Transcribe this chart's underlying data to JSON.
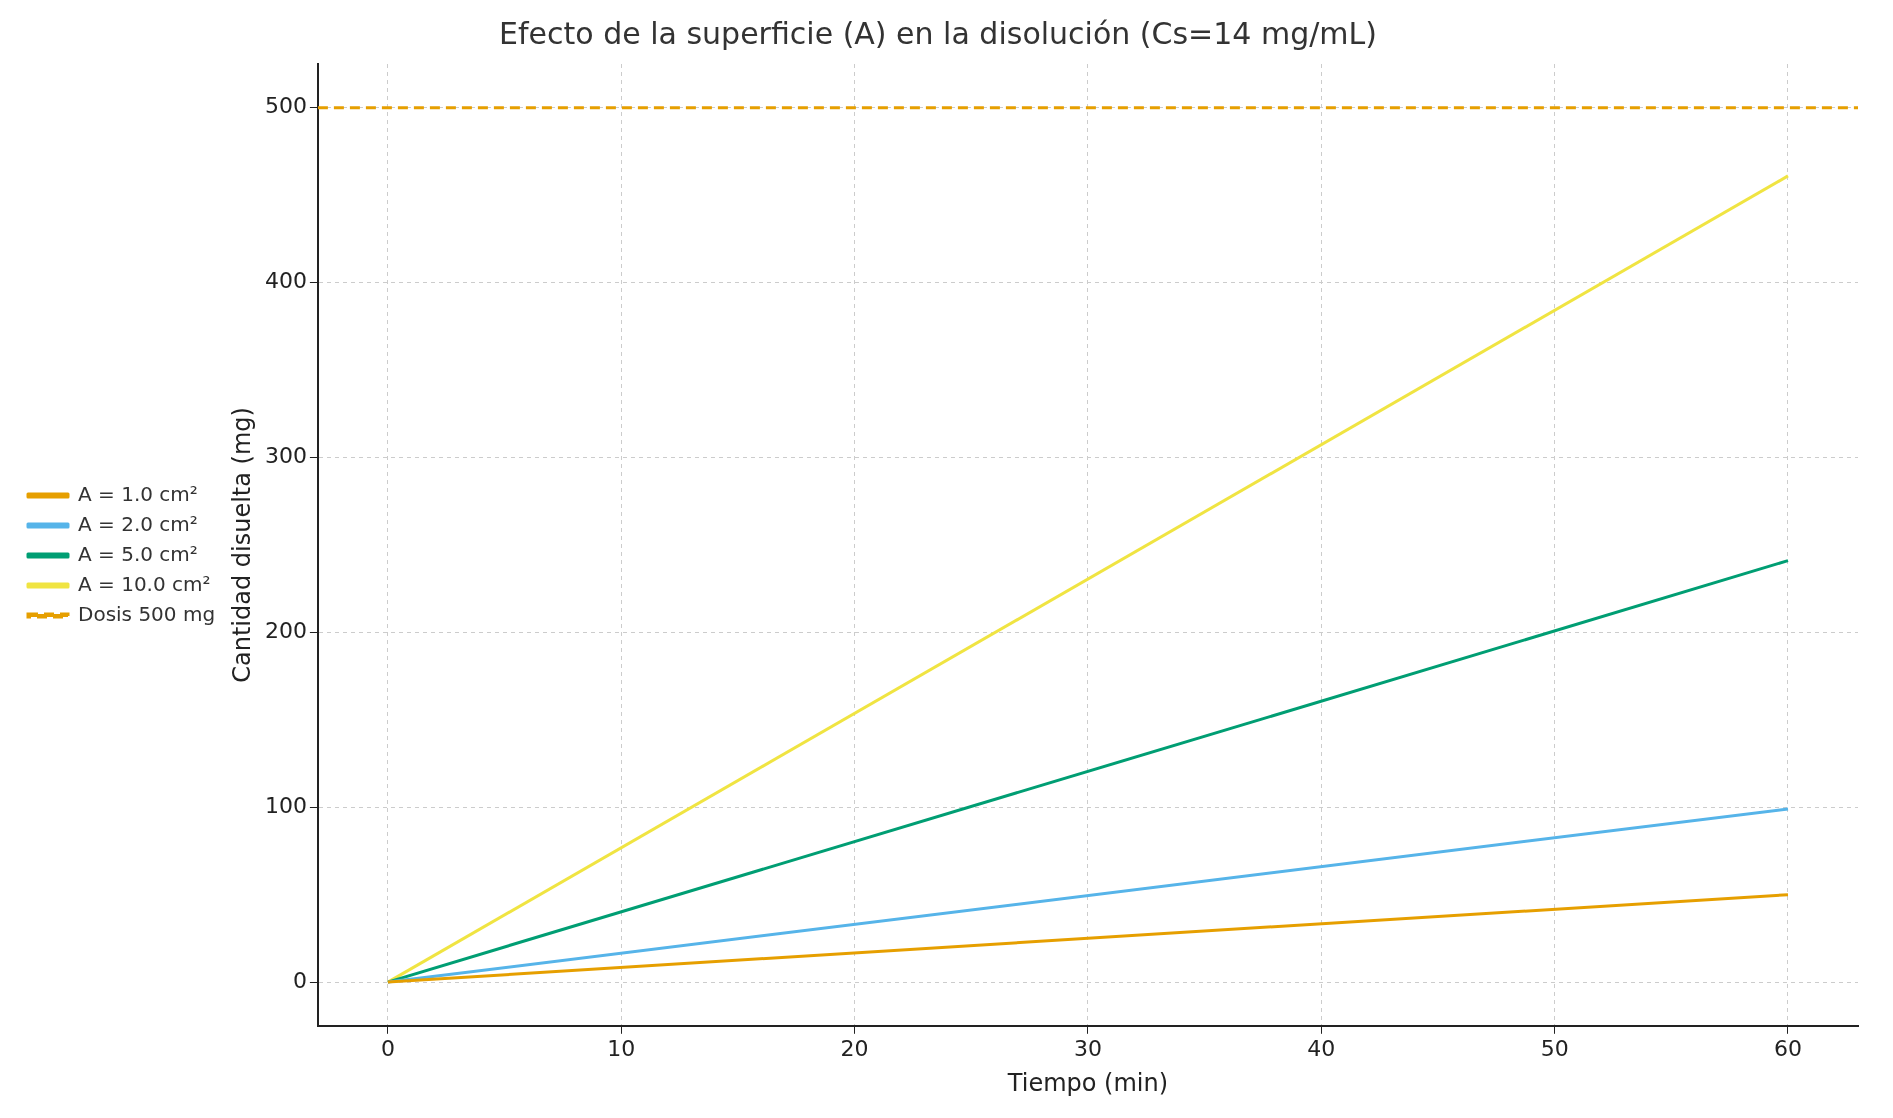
{
  "chart_data": {
    "type": "line",
    "title": "Efecto de la superficie (A) en la disolución (Cs=14 mg/mL)",
    "xlabel": "Tiempo (min)",
    "ylabel": "Cantidad disuelta (mg)",
    "x": [
      0,
      60
    ],
    "series": [
      {
        "name": "A = 1.0 cm²",
        "color": "#e69f00",
        "values": [
          0,
          50
        ]
      },
      {
        "name": "A = 2.0 cm²",
        "color": "#56b4e9",
        "values": [
          0,
          99
        ]
      },
      {
        "name": "A = 5.0 cm²",
        "color": "#009e73",
        "values": [
          0,
          241
        ]
      },
      {
        "name": "A = 10.0 cm²",
        "color": "#f0e442",
        "values": [
          0,
          461
        ]
      }
    ],
    "ref_lines": [
      {
        "axis": "y",
        "value": 500,
        "label": "Dosis 500 mg",
        "color": "#e69f00",
        "line_style": "dashed"
      }
    ],
    "xlim": [
      -3,
      63
    ],
    "xticks": [
      0,
      10,
      20,
      30,
      40,
      50,
      60
    ],
    "ylim": [
      -25,
      525
    ],
    "yticks": [
      0,
      100,
      200,
      300,
      400,
      500
    ],
    "grid": true,
    "legend": "left",
    "marker": "none",
    "line_style": "solid"
  }
}
